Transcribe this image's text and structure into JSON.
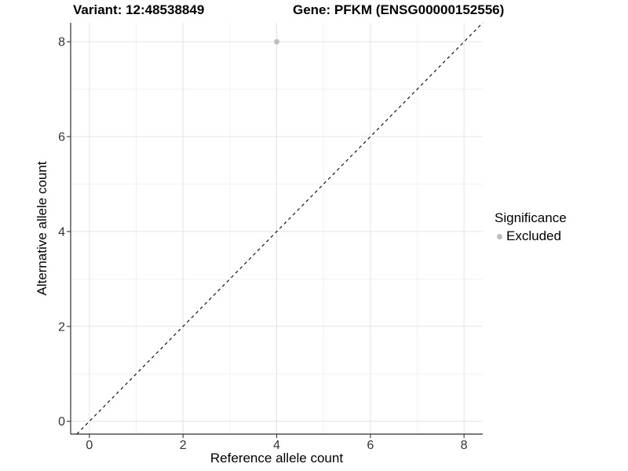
{
  "chart_data": {
    "type": "scatter",
    "titles": [
      "Variant: 12:48538849",
      "Gene: PFKM (ENSG00000152556)"
    ],
    "xlabel": "Reference allele count",
    "ylabel": "Alternative allele count",
    "xticks": [
      0,
      2,
      4,
      6,
      8
    ],
    "yticks": [
      0,
      2,
      4,
      6,
      8
    ],
    "minor_ticks_x": [
      1,
      3,
      5,
      7
    ],
    "minor_ticks_y": [
      1,
      3,
      5,
      7
    ],
    "xlim": [
      -0.4,
      8.4
    ],
    "ylim": [
      -0.27,
      8.4
    ],
    "grid": "major and minor, light gray on white",
    "identity_line": {
      "slope": 1,
      "intercept": 0,
      "style": "dashed",
      "color": "#000000"
    },
    "series": [
      {
        "name": "Excluded",
        "color": "#bdbdbd",
        "points": [
          {
            "x": 4,
            "y": 8
          }
        ]
      }
    ],
    "legend": {
      "title": "Significance",
      "position": "right",
      "items": [
        {
          "label": "Excluded",
          "color": "#bdbdbd",
          "marker": "circle"
        }
      ]
    },
    "colors": {
      "background": "#ffffff",
      "grid_major": "#e4e4e4",
      "grid_minor": "#f1f1f1",
      "axis_line": "#2f2f2f",
      "tick": "#333333",
      "text": "#000000"
    }
  }
}
